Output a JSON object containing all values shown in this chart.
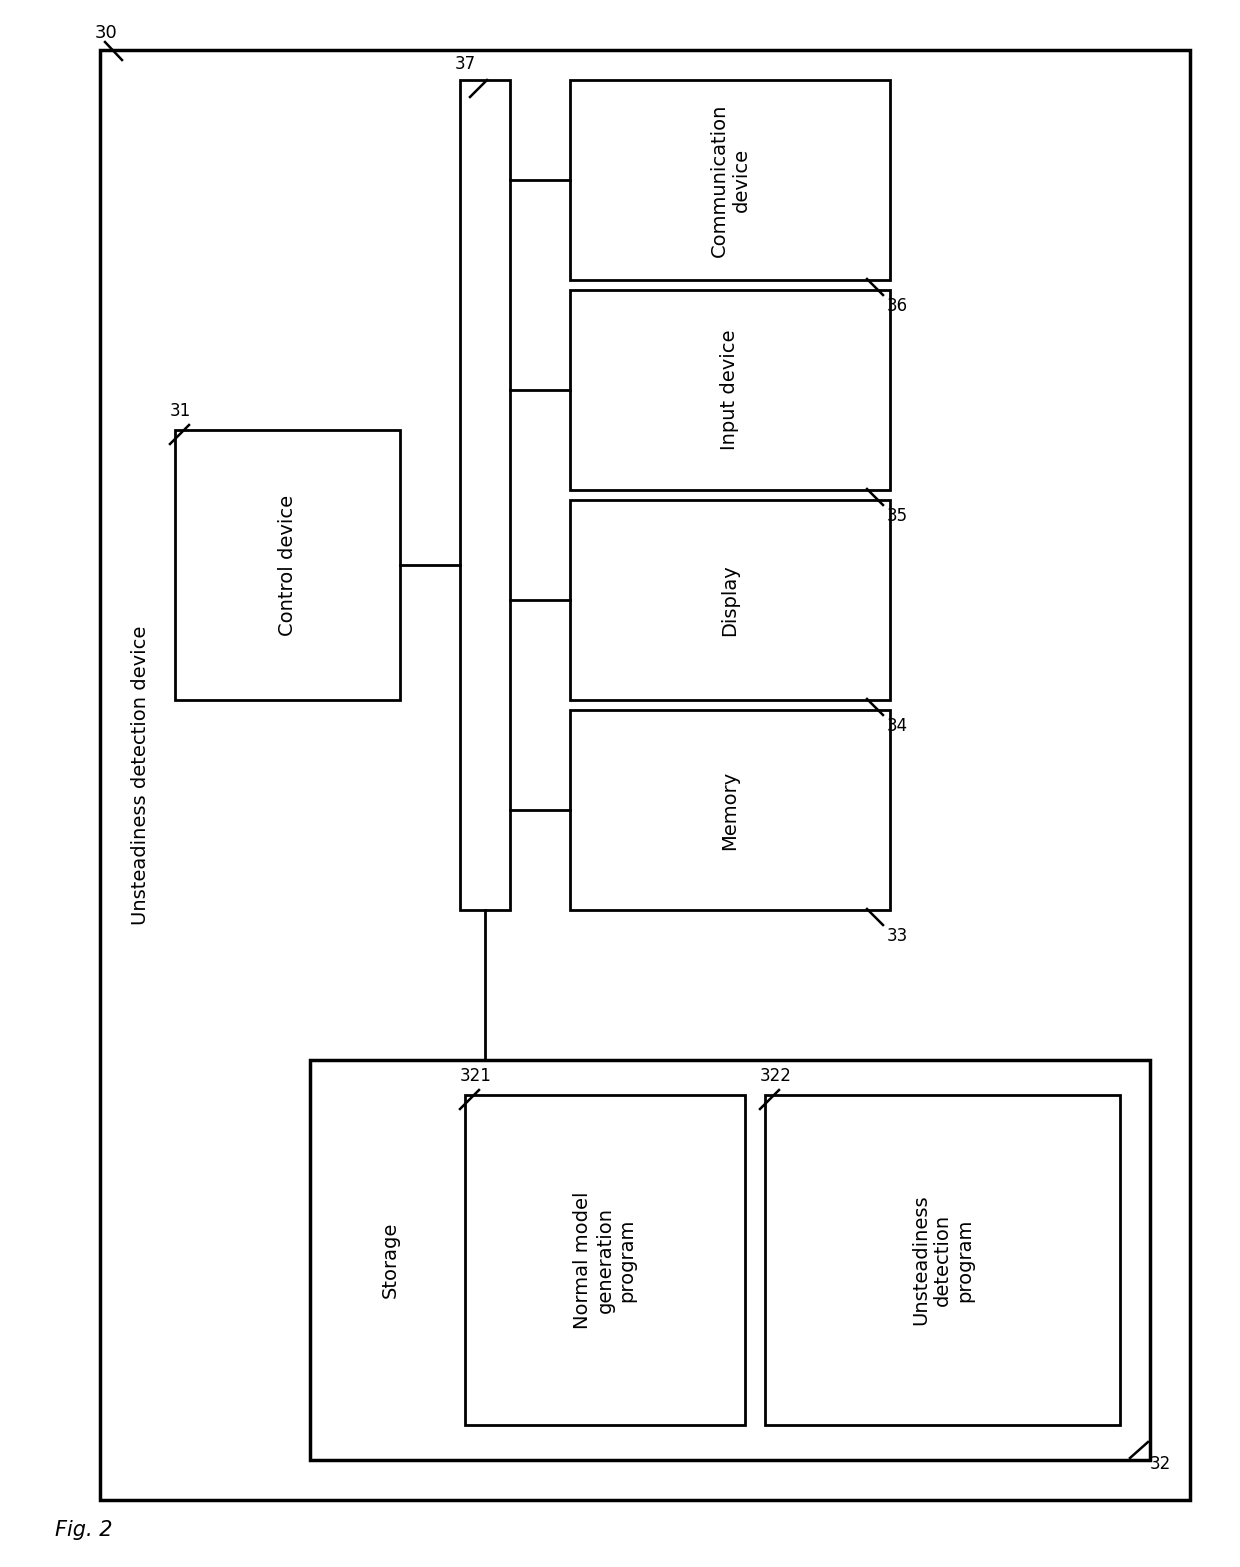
{
  "fig_label": "Fig. 2",
  "bg_color": "#ffffff",
  "line_color": "#000000",
  "text_color": "#000000",
  "font_size": 14,
  "small_font_size": 12,
  "outer_label": "30",
  "outer_side_label": "Unsteadiness detection device",
  "control_label": "Control device",
  "control_num": "31",
  "bus_num": "37",
  "component_boxes": [
    {
      "label": "Communication\ndevice",
      "num": "36"
    },
    {
      "label": "Input device",
      "num": "35"
    },
    {
      "label": "Display",
      "num": "34"
    },
    {
      "label": "Memory",
      "num": "33"
    }
  ],
  "storage_label": "Storage",
  "storage_num": "32",
  "sub_boxes": [
    {
      "label": "Normal model\ngeneration\nprogram",
      "num": "321"
    },
    {
      "label": "Unsteadiness\ndetection\nprogram",
      "num": "322"
    }
  ]
}
